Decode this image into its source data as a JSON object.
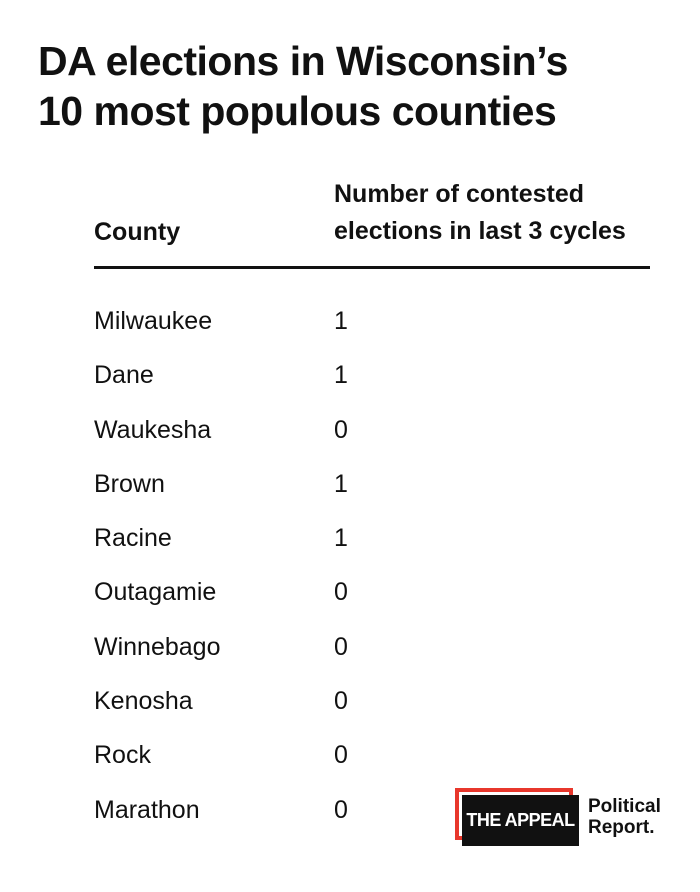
{
  "title": {
    "line1": "DA elections in Wisconsin’s",
    "line2": "10 most populous counties"
  },
  "chart_data": {
    "type": "table",
    "title": "DA elections in Wisconsin’s 10 most populous counties",
    "columns": [
      "County",
      "Number of contested elections in last 3 cycles"
    ],
    "header": {
      "county": "County",
      "count_line1": "Number of contested",
      "count_line2": "elections in last 3 cycles"
    },
    "rows": [
      {
        "county": "Milwaukee",
        "count": "1"
      },
      {
        "county": "Dane",
        "count": "1"
      },
      {
        "county": "Waukesha",
        "count": "0"
      },
      {
        "county": "Brown",
        "count": "1"
      },
      {
        "county": "Racine",
        "count": "1"
      },
      {
        "county": "Outagamie",
        "count": "0"
      },
      {
        "county": "Winnebago",
        "count": "0"
      },
      {
        "county": "Kenosha",
        "count": "0"
      },
      {
        "county": "Rock",
        "count": "0"
      },
      {
        "county": "Marathon",
        "count": "0"
      }
    ]
  },
  "logo": {
    "mark": "THE APPEAL",
    "line1": "Political",
    "line2": "Report.",
    "accent_color": "#e8372c"
  }
}
